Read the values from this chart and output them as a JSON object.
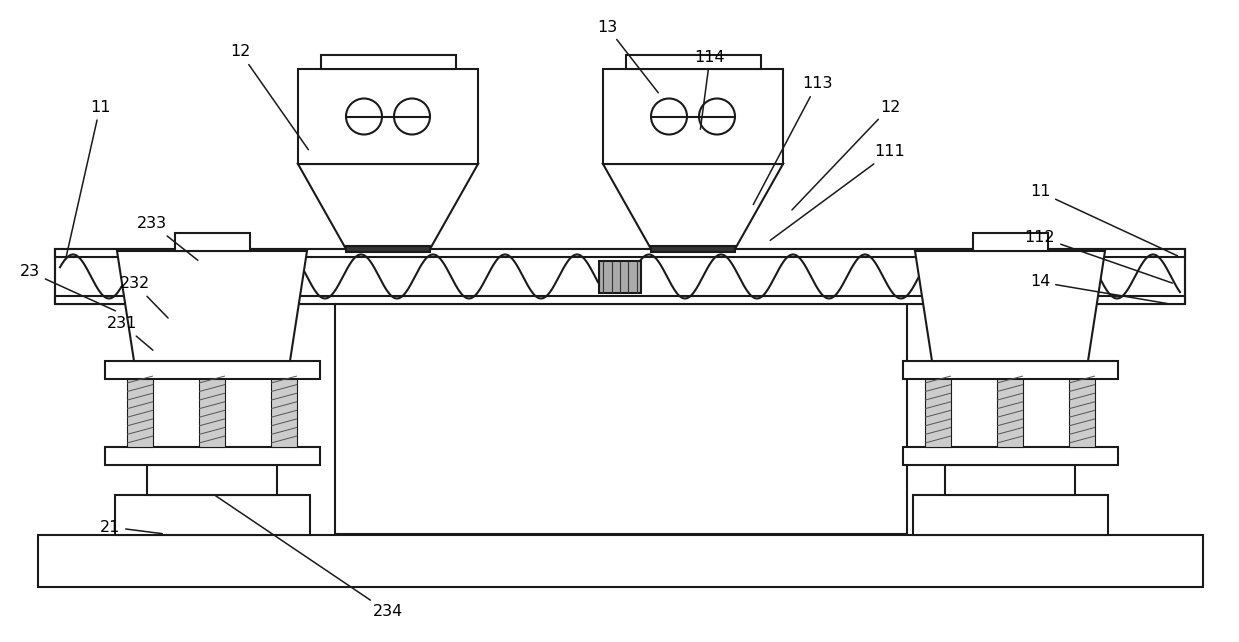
{
  "bg_color": "#ffffff",
  "line_color": "#1a1a1a",
  "lw": 1.5,
  "fig_w": 12.39,
  "fig_h": 6.42,
  "dpi": 100
}
